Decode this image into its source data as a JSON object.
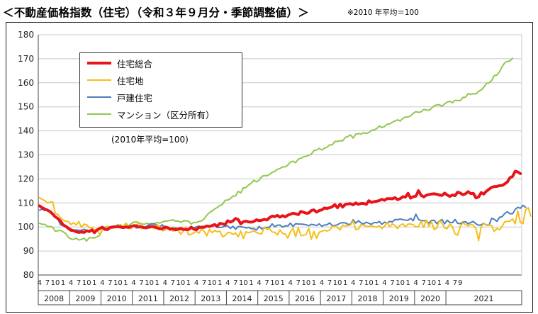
{
  "header": {
    "title": "＜不動産価格指数（住宅）（令和３年９月分・季節調整値）＞",
    "note": "※2010 年平均＝100"
  },
  "legend_note": "(2010年平均=100)",
  "chart_data": {
    "type": "line",
    "title": "",
    "xlabel": "",
    "ylabel": "",
    "ylim": [
      80,
      180
    ],
    "yticks": [
      80,
      90,
      100,
      110,
      120,
      130,
      140,
      150,
      160,
      170,
      180
    ],
    "grid": true,
    "legend_position": "top-left",
    "x_start": "2008-04",
    "x_end": "2021-09",
    "month_tick_labels": [
      "4",
      "7",
      "10",
      "1"
    ],
    "last_month_tick_labels": [
      "4",
      "7",
      "9"
    ],
    "years": [
      "2008",
      "2009",
      "2010",
      "2011",
      "2012",
      "2013",
      "2014",
      "2015",
      "2016",
      "2017",
      "2018",
      "2019",
      "2020",
      "2021"
    ],
    "series": [
      {
        "name": "住宅総合",
        "color": "#e8141b",
        "width": 4,
        "values": [
          108.8,
          108.0,
          107.5,
          107.0,
          106.4,
          105.4,
          104.2,
          103.5,
          102.5,
          100.9,
          100.3,
          99.5,
          98.6,
          98.5,
          98.0,
          97.7,
          98.0,
          97.7,
          98.4,
          98.1,
          98.8,
          97.6,
          98.8,
          99.3,
          99.9,
          99.0,
          98.9,
          99.8,
          100.0,
          100.1,
          100.1,
          100.0,
          99.7,
          100.0,
          99.8,
          100.2,
          100.5,
          100.5,
          100.0,
          100.1,
          99.7,
          99.7,
          100.0,
          100.2,
          100.1,
          99.6,
          99.2,
          99.3,
          100.0,
          99.7,
          99.0,
          99.3,
          98.8,
          99.1,
          99.4,
          99.0,
          98.9,
          98.9,
          99.9,
          99.1,
          98.8,
          99.8,
          99.9,
          99.9,
          100.4,
          100.2,
          100.6,
          101.0,
          100.3,
          101.5,
          101.3,
          101.0,
          102.6,
          102.0,
          102.5,
          103.5,
          103.1,
          101.3,
          102.2,
          102.4,
          102.1,
          102.0,
          102.3,
          103.0,
          102.6,
          102.8,
          103.2,
          102.9,
          103.9,
          104.5,
          104.3,
          104.8,
          104.1,
          104.7,
          104.2,
          104.9,
          105.3,
          105.7,
          105.5,
          105.1,
          106.5,
          106.1,
          105.7,
          105.8,
          106.8,
          107.1,
          106.2,
          106.8,
          107.1,
          107.9,
          107.7,
          108.0,
          108.4,
          109.3,
          108.0,
          109.5,
          108.3,
          109.4,
          109.6,
          109.7,
          109.2,
          110.0,
          109.4,
          109.8,
          109.8,
          109.4,
          110.9,
          110.2,
          110.5,
          110.7,
          111.0,
          111.5,
          111.1,
          111.8,
          111.8,
          111.7,
          112.2,
          111.4,
          111.8,
          112.6,
          112.4,
          114.0,
          112.0,
          112.6,
          112.8,
          115.1,
          113.2,
          112.5,
          113.2,
          113.5,
          113.7,
          113.8,
          113.6,
          113.3,
          113.1,
          114.1,
          113.3,
          112.7,
          113.3,
          113.0,
          114.5,
          114.1,
          113.4,
          113.8,
          114.7,
          113.9,
          114.0,
          112.1,
          112.5,
          114.3,
          113.7,
          114.9,
          115.7,
          116.5,
          116.8,
          116.9,
          117.2,
          117.3,
          117.9,
          118.7,
          120.5,
          121.0,
          123.2,
          122.9,
          122.2
        ]
      },
      {
        "name": "住宅地",
        "color": "#f5be19",
        "width": 2,
        "values": [
          112.2,
          111.4,
          111.0,
          110.1,
          110.3,
          110.5,
          105.7,
          105.2,
          103.8,
          102.9,
          102.4,
          102.3,
          101.0,
          101.8,
          100.8,
          102.3,
          99.8,
          101.2,
          100.9,
          99.7,
          99.8,
          98.8,
          99.1,
          96.9,
          98.7,
          99.6,
          100.3,
          99.5,
          100.2,
          100.1,
          100.8,
          100.5,
          100.0,
          101.6,
          99.6,
          99.2,
          101.0,
          100.5,
          101.9,
          99.2,
          99.9,
          99.7,
          99.5,
          99.8,
          99.2,
          101.0,
          100.1,
          98.4,
          98.7,
          99.4,
          99.8,
          98.2,
          98.8,
          98.6,
          97.0,
          98.3,
          100.1,
          96.7,
          97.0,
          97.5,
          98.2,
          97.4,
          99.1,
          98.2,
          96.3,
          99.0,
          97.6,
          98.5,
          98.0,
          98.3,
          95.9,
          96.4,
          97.7,
          97.6,
          96.9,
          97.5,
          95.9,
          98.3,
          95.2,
          98.0,
          97.6,
          97.9,
          98.4,
          97.7,
          97.3,
          97.1,
          100.0,
          99.0,
          99.3,
          97.9,
          97.8,
          96.7,
          98.8,
          97.3,
          97.1,
          95.4,
          97.9,
          99.4,
          96.0,
          99.7,
          96.4,
          96.5,
          97.0,
          99.4,
          94.9,
          98.1,
          95.3,
          97.8,
          98.2,
          98.6,
          98.3,
          98.7,
          100.1,
          100.3,
          99.8,
          98.7,
          100.8,
          100.4,
          100.6,
          100.8,
          102.5,
          98.9,
          99.1,
          101.0,
          100.7,
          100.3,
          100.2,
          100.5,
          100.1,
          99.9,
          100.5,
          99.3,
          100.3,
          101.9,
          100.1,
          101.3,
          100.6,
          99.3,
          100.8,
          101.3,
          100.1,
          101.2,
          101.2,
          100.9,
          100.0,
          100.1,
          102.3,
          99.8,
          102.9,
          100.3,
          102.2,
          98.9,
          99.5,
          102.7,
          101.6,
          99.6,
          99.3,
          101.2,
          100.1,
          97.1,
          96.6,
          100.3,
          101.7,
          101.0,
          100.4,
          101.1,
          100.7,
          99.3,
          94.3,
          100.2,
          101.4,
          101.0,
          100.8,
          100.6,
          98.1,
          99.4,
          98.8,
          100.2,
          102.2,
          102.3,
          102.4,
          103.4,
          101.3,
          106.7,
          101.8,
          101.4,
          107.2,
          108.0,
          104.5
        ]
      },
      {
        "name": "戸建住宅",
        "color": "#4a7ebb",
        "width": 2,
        "values": [
          107.0,
          107.4,
          106.8,
          107.2,
          106.6,
          105.2,
          104.2,
          103.3,
          100.9,
          100.5,
          100.3,
          98.9,
          99.3,
          98.4,
          98.8,
          98.6,
          98.6,
          99.1,
          98.4,
          97.8,
          98.5,
          98.3,
          98.7,
          99.2,
          99.9,
          99.8,
          100.3,
          99.5,
          100.2,
          100.1,
          101.0,
          99.6,
          100.2,
          100.4,
          100.0,
          100.4,
          100.6,
          99.6,
          99.7,
          100.4,
          99.7,
          100.3,
          101.0,
          101.3,
          101.2,
          100.8,
          100.1,
          100.9,
          99.1,
          99.6,
          99.7,
          99.0,
          99.6,
          99.3,
          98.8,
          99.0,
          99.5,
          98.9,
          99.4,
          99.6,
          100.0,
          100.4,
          99.2,
          99.7,
          100.0,
          100.4,
          100.6,
          100.6,
          99.8,
          99.8,
          99.9,
          100.4,
          100.4,
          99.4,
          100.3,
          99.1,
          100.2,
          100.1,
          99.9,
          99.6,
          99.8,
          99.3,
          99.3,
          98.7,
          100.2,
          99.2,
          99.5,
          99.8,
          99.9,
          101.3,
          100.1,
          100.7,
          100.8,
          99.9,
          100.5,
          100.4,
          101.6,
          100.2,
          101.4,
          101.2,
          101.2,
          101.1,
          100.9,
          100.5,
          101.1,
          100.9,
          100.6,
          101.3,
          100.3,
          100.8,
          100.9,
          101.7,
          100.6,
          100.6,
          100.9,
          101.6,
          101.8,
          101.7,
          101.1,
          101.1,
          103.0,
          101.6,
          102.6,
          101.7,
          101.2,
          102.0,
          101.5,
          101.1,
          101.9,
          101.7,
          102.3,
          101.1,
          102.0,
          101.6,
          102.3,
          102.1,
          103.1,
          103.0,
          103.3,
          103.1,
          102.8,
          102.8,
          103.6,
          102.6,
          105.3,
          103.2,
          102.6,
          102.6,
          102.5,
          101.6,
          102.7,
          102.8,
          101.4,
          102.5,
          103.1,
          101.3,
          102.8,
          101.9,
          101.8,
          103.1,
          101.5,
          101.4,
          102.0,
          102.2,
          101.3,
          101.9,
          102.3,
          101.3,
          100.7,
          100.9,
          101.5,
          100.8,
          100.7,
          103.6,
          103.2,
          102.3,
          104.0,
          104.3,
          105.6,
          106.3,
          105.5,
          105.5,
          107.3,
          108.2,
          107.8,
          109.0,
          108.2
        ]
      },
      {
        "name": "マンション（区分所有）",
        "color": "#92c750",
        "width": 2,
        "values": [
          101.5,
          101.1,
          101.1,
          100.2,
          100.2,
          99.9,
          98.2,
          98.4,
          98.6,
          98.0,
          97.3,
          95.7,
          95.0,
          94.8,
          95.3,
          94.6,
          94.8,
          95.3,
          94.2,
          95.5,
          95.5,
          95.4,
          95.9,
          96.5,
          98.7,
          99.1,
          99.8,
          99.6,
          99.5,
          99.7,
          100.6,
          100.9,
          100.1,
          101.5,
          100.5,
          101.3,
          102.0,
          102.1,
          101.8,
          101.3,
          101.1,
          101.5,
          101.3,
          101.4,
          101.4,
          101.9,
          101.6,
          102.1,
          102.4,
          102.5,
          102.7,
          103.0,
          102.4,
          102.5,
          101.9,
          102.5,
          102.6,
          102.4,
          101.2,
          101.9,
          101.9,
          102.3,
          102.5,
          103.4,
          104.9,
          106.0,
          106.6,
          107.5,
          108.1,
          108.9,
          109.4,
          111.1,
          111.2,
          111.8,
          112.8,
          112.9,
          114.8,
          114.2,
          116.3,
          116.4,
          117.5,
          118.2,
          119.4,
          118.8,
          119.4,
          121.0,
          121.4,
          121.3,
          121.9,
          122.7,
          123.1,
          124.0,
          124.3,
          125.0,
          125.0,
          125.8,
          127.0,
          127.4,
          126.7,
          128.2,
          128.6,
          129.2,
          129.4,
          129.8,
          130.3,
          131.8,
          132.0,
          132.7,
          132.0,
          132.8,
          133.2,
          134.2,
          134.1,
          135.6,
          135.6,
          135.9,
          135.8,
          137.3,
          137.7,
          138.3,
          137.0,
          138.6,
          138.9,
          138.6,
          139.2,
          138.9,
          139.3,
          140.2,
          140.4,
          140.9,
          142.0,
          141.4,
          141.8,
          142.7,
          142.9,
          143.6,
          144.1,
          144.6,
          144.1,
          145.2,
          145.7,
          145.8,
          146.2,
          147.3,
          148.0,
          147.7,
          147.9,
          148.9,
          148.7,
          148.5,
          149.4,
          150.4,
          150.8,
          150.9,
          150.2,
          151.2,
          152.0,
          152.3,
          151.7,
          152.7,
          152.6,
          152.6,
          153.9,
          154.0,
          155.5,
          155.2,
          155.5,
          155.4,
          156.5,
          157.0,
          158.1,
          159.7,
          160.0,
          160.9,
          163.0,
          163.2,
          164.6,
          166.7,
          168.3,
          168.9,
          169.1,
          170.2
        ]
      }
    ]
  }
}
